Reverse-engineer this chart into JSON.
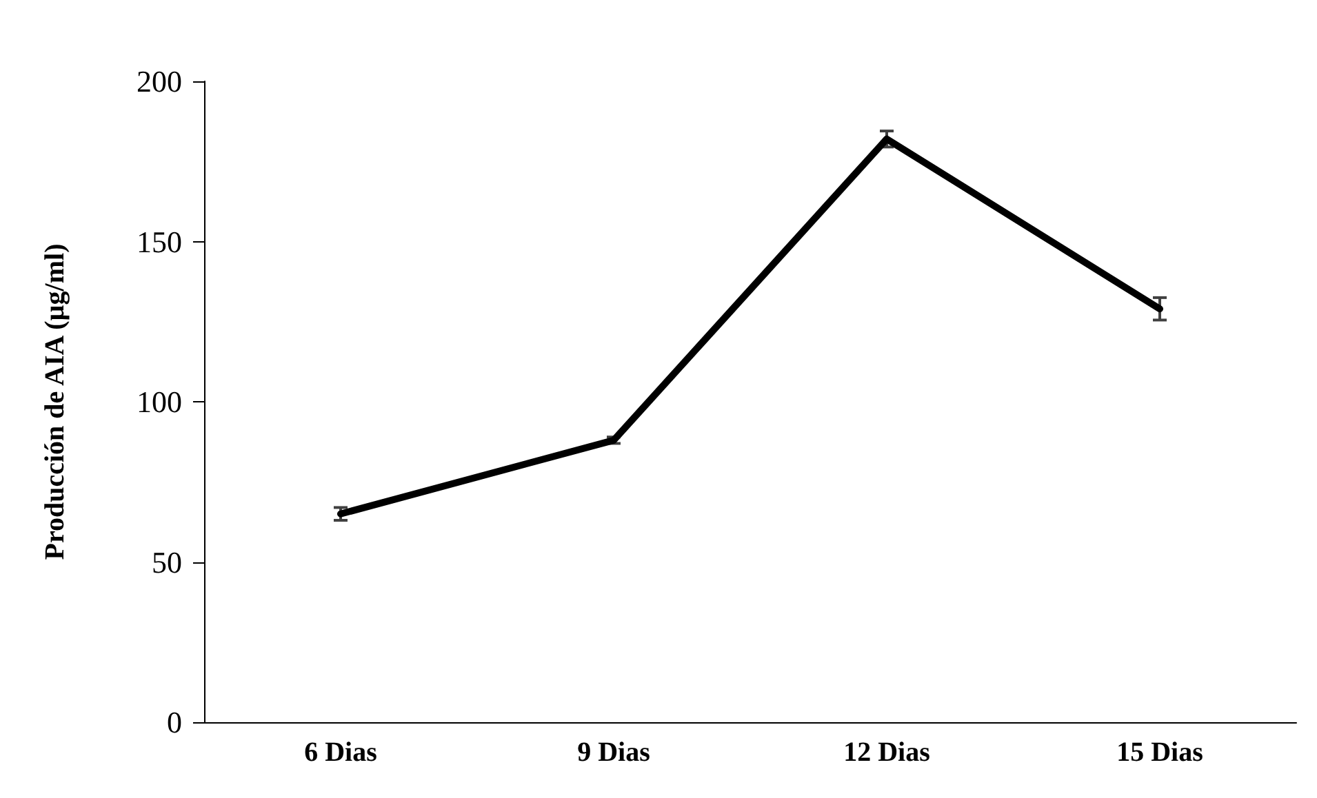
{
  "chart_data": {
    "type": "line",
    "ylabel": "Producción de AIA (µg/ml)",
    "categories": [
      "6 Dias",
      "9 Dias",
      "12 Dias",
      "15 Dias"
    ],
    "series": [
      {
        "color": "#000000",
        "values": [
          65,
          88,
          182,
          129
        ],
        "errors": [
          2,
          1,
          2.5,
          3.5
        ]
      }
    ],
    "ylim": [
      0,
      200
    ],
    "yticks": [
      0,
      50,
      100,
      150,
      200
    ],
    "grid": false,
    "marker": "none",
    "line_style": "solid"
  }
}
